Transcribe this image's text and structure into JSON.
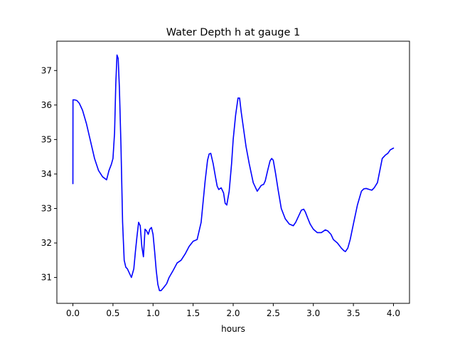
{
  "chart_data": {
    "type": "line",
    "title": "Water Depth h at gauge 1",
    "xlabel": "hours",
    "ylabel": "",
    "xlim": [
      -0.2,
      4.2
    ],
    "ylim": [
      30.25,
      37.85
    ],
    "xticks": [
      0.0,
      0.5,
      1.0,
      1.5,
      2.0,
      2.5,
      3.0,
      3.5,
      4.0
    ],
    "xtick_labels": [
      "0.0",
      "0.5",
      "1.0",
      "1.5",
      "2.0",
      "2.5",
      "3.0",
      "3.5",
      "4.0"
    ],
    "yticks": [
      31,
      32,
      33,
      34,
      35,
      36,
      37
    ],
    "ytick_labels": [
      "31",
      "32",
      "33",
      "34",
      "35",
      "36",
      "37"
    ],
    "grid": false,
    "series": [
      {
        "color": "#0000ff",
        "x": [
          0.0,
          0.001,
          0.02,
          0.05,
          0.08,
          0.12,
          0.17,
          0.22,
          0.27,
          0.32,
          0.37,
          0.42,
          0.45,
          0.48,
          0.5,
          0.52,
          0.535,
          0.55,
          0.565,
          0.58,
          0.6,
          0.62,
          0.64,
          0.66,
          0.68,
          0.7,
          0.73,
          0.76,
          0.78,
          0.8,
          0.82,
          0.84,
          0.86,
          0.88,
          0.9,
          0.92,
          0.94,
          0.96,
          0.98,
          1.0,
          1.02,
          1.04,
          1.06,
          1.08,
          1.1,
          1.13,
          1.17,
          1.2,
          1.25,
          1.3,
          1.35,
          1.4,
          1.45,
          1.5,
          1.55,
          1.6,
          1.65,
          1.68,
          1.7,
          1.72,
          1.75,
          1.78,
          1.8,
          1.82,
          1.85,
          1.88,
          1.9,
          1.92,
          1.95,
          1.98,
          2.0,
          2.03,
          2.06,
          2.08,
          2.1,
          2.13,
          2.16,
          2.2,
          2.25,
          2.3,
          2.33,
          2.35,
          2.38,
          2.4,
          2.43,
          2.46,
          2.48,
          2.5,
          2.53,
          2.56,
          2.6,
          2.65,
          2.7,
          2.75,
          2.78,
          2.82,
          2.85,
          2.88,
          2.9,
          2.93,
          2.96,
          3.0,
          3.05,
          3.1,
          3.15,
          3.18,
          3.22,
          3.25,
          3.3,
          3.35,
          3.38,
          3.4,
          3.43,
          3.46,
          3.5,
          3.55,
          3.6,
          3.63,
          3.66,
          3.7,
          3.73,
          3.76,
          3.8,
          3.83,
          3.86,
          3.9,
          3.93,
          3.96,
          4.0
        ],
        "y": [
          33.72,
          36.15,
          36.15,
          36.13,
          36.05,
          35.85,
          35.45,
          34.95,
          34.45,
          34.1,
          33.92,
          33.83,
          34.1,
          34.28,
          34.45,
          35.2,
          36.6,
          37.45,
          37.35,
          36.5,
          34.8,
          32.6,
          31.5,
          31.3,
          31.25,
          31.15,
          31.0,
          31.25,
          31.75,
          32.2,
          32.6,
          32.5,
          31.9,
          31.6,
          32.4,
          32.35,
          32.25,
          32.4,
          32.45,
          32.25,
          31.75,
          31.2,
          30.8,
          30.62,
          30.62,
          30.7,
          30.82,
          31.0,
          31.2,
          31.42,
          31.5,
          31.68,
          31.9,
          32.05,
          32.1,
          32.6,
          33.8,
          34.4,
          34.58,
          34.6,
          34.3,
          33.9,
          33.65,
          33.55,
          33.6,
          33.45,
          33.15,
          33.1,
          33.5,
          34.3,
          35.0,
          35.7,
          36.2,
          36.2,
          35.8,
          35.3,
          34.8,
          34.3,
          33.75,
          33.5,
          33.6,
          33.67,
          33.7,
          33.8,
          34.1,
          34.38,
          34.45,
          34.4,
          34.0,
          33.55,
          33.0,
          32.7,
          32.55,
          32.5,
          32.6,
          32.8,
          32.95,
          32.98,
          32.9,
          32.72,
          32.55,
          32.4,
          32.3,
          32.3,
          32.38,
          32.35,
          32.25,
          32.1,
          32.0,
          31.85,
          31.78,
          31.75,
          31.85,
          32.1,
          32.55,
          33.1,
          33.5,
          33.57,
          33.58,
          33.55,
          33.53,
          33.6,
          33.75,
          34.1,
          34.45,
          34.55,
          34.6,
          34.7,
          34.75
        ]
      }
    ]
  }
}
